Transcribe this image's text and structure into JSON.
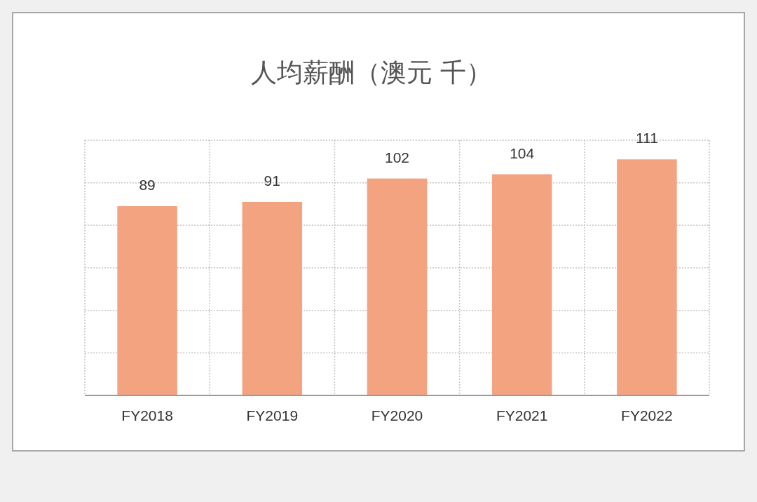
{
  "chart_data": {
    "type": "bar",
    "title": "人均薪酬（澳元 千）",
    "categories": [
      "FY2018",
      "FY2019",
      "FY2020",
      "FY2021",
      "FY2022"
    ],
    "values": [
      89,
      91,
      102,
      104,
      111
    ],
    "color": "#f4a380",
    "ylim": [
      0,
      120
    ],
    "yticks": [
      {
        "value": 0,
        "label": null
      },
      {
        "value": 20,
        "label": null
      },
      {
        "value": 40,
        "label": null
      },
      {
        "value": 60,
        "label": null
      },
      {
        "value": 80,
        "label": null
      },
      {
        "value": 100,
        "label": null
      },
      {
        "value": 120,
        "label": null
      }
    ],
    "tick_labels": "x",
    "grid": true,
    "data_labels": true
  }
}
